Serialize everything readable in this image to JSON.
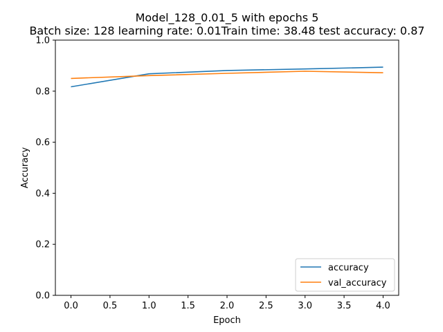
{
  "chart_data": {
    "type": "line",
    "title": "Model_128_0.01_5 with epochs 5",
    "subtitle": "Batch size: 128  learning rate: 0.01Train time: 38.48  test accuracy: 0.87",
    "xlabel": "Epoch",
    "ylabel": "Accuracy",
    "x": [
      0,
      1,
      2,
      3,
      4
    ],
    "xlim": [
      -0.2,
      4.2
    ],
    "ylim": [
      0,
      1
    ],
    "xticks": [
      0.0,
      0.5,
      1.0,
      1.5,
      2.0,
      2.5,
      3.0,
      3.5,
      4.0
    ],
    "xtick_labels": [
      "0.0",
      "0.5",
      "1.0",
      "1.5",
      "2.0",
      "2.5",
      "3.0",
      "3.5",
      "4.0"
    ],
    "yticks": [
      0.0,
      0.2,
      0.4,
      0.6,
      0.8,
      1.0
    ],
    "ytick_labels": [
      "0.0",
      "0.2",
      "0.4",
      "0.6",
      "0.8",
      "1.0"
    ],
    "grid": false,
    "legend_position": "lower-right",
    "series": [
      {
        "name": "accuracy",
        "color": "#1f77b4",
        "values": [
          0.817,
          0.868,
          0.881,
          0.887,
          0.894
        ]
      },
      {
        "name": "val_accuracy",
        "color": "#ff7f0e",
        "values": [
          0.85,
          0.861,
          0.87,
          0.878,
          0.872
        ]
      }
    ]
  }
}
